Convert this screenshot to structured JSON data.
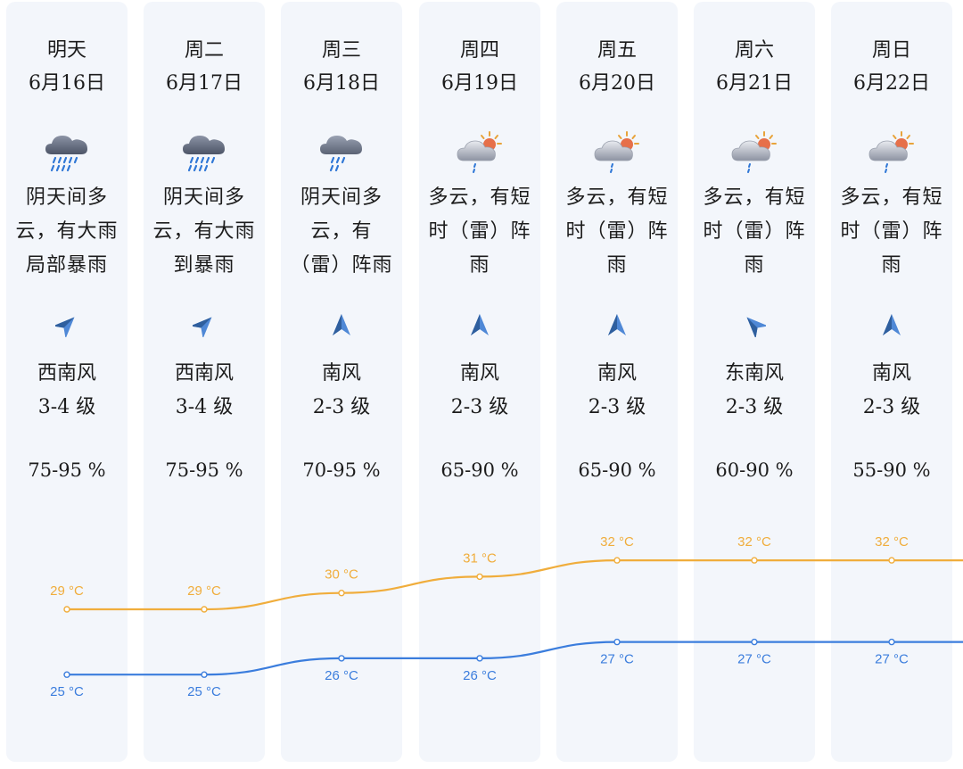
{
  "days": [
    {
      "day": "明天",
      "date": "6月16日",
      "icon": "heavy-rain-icon",
      "desc": "阴天间多云，有大雨局部暴雨",
      "wind_icon": "wind-arrow-southwest-icon",
      "wind_dir": "西南风",
      "wind_level": "3-4 级",
      "humidity": "75-95 %",
      "high": "29 °C",
      "low": "25 °C"
    },
    {
      "day": "周二",
      "date": "6月17日",
      "icon": "heavy-rain-icon",
      "desc": "阴天间多云，有大雨到暴雨",
      "wind_icon": "wind-arrow-southwest-icon",
      "wind_dir": "西南风",
      "wind_level": "3-4 级",
      "humidity": "75-95 %",
      "high": "29 °C",
      "low": "25 °C"
    },
    {
      "day": "周三",
      "date": "6月18日",
      "icon": "thunder-rain-icon",
      "desc": "阴天间多云，有（雷）阵雨",
      "wind_icon": "wind-arrow-south-icon",
      "wind_dir": "南风",
      "wind_level": "2-3 级",
      "humidity": "70-95 %",
      "high": "30 °C",
      "low": "26 °C"
    },
    {
      "day": "周四",
      "date": "6月19日",
      "icon": "partly-cloudy-shower-icon",
      "desc": "多云，有短时（雷）阵雨",
      "wind_icon": "wind-arrow-south-icon",
      "wind_dir": "南风",
      "wind_level": "2-3 级",
      "humidity": "65-90 %",
      "high": "31 °C",
      "low": "26 °C"
    },
    {
      "day": "周五",
      "date": "6月20日",
      "icon": "partly-cloudy-shower-icon",
      "desc": "多云，有短时（雷）阵雨",
      "wind_icon": "wind-arrow-south-icon",
      "wind_dir": "南风",
      "wind_level": "2-3 级",
      "humidity": "65-90 %",
      "high": "32 °C",
      "low": "27 °C"
    },
    {
      "day": "周六",
      "date": "6月21日",
      "icon": "partly-cloudy-shower-icon",
      "desc": "多云，有短时（雷）阵雨",
      "wind_icon": "wind-arrow-southeast-icon",
      "wind_dir": "东南风",
      "wind_level": "2-3 级",
      "humidity": "60-90 %",
      "high": "32 °C",
      "low": "27 °C"
    },
    {
      "day": "周日",
      "date": "6月22日",
      "icon": "partly-cloudy-shower-icon",
      "desc": "多云，有短时（雷）阵雨",
      "wind_icon": "wind-arrow-south-icon",
      "wind_dir": "南风",
      "wind_level": "2-3 级",
      "humidity": "55-90 %",
      "high": "32 °C",
      "low": "27 °C"
    }
  ],
  "chart_data": {
    "type": "line",
    "categories": [
      "明天",
      "周二",
      "周三",
      "周四",
      "周五",
      "周六",
      "周日"
    ],
    "series": [
      {
        "name": "",
        "values": [
          29,
          29,
          30,
          31,
          32,
          32,
          32
        ]
      },
      {
        "name": "",
        "values": [
          25,
          25,
          26,
          26,
          27,
          27,
          27
        ]
      }
    ],
    "colors": {
      "high": "#f0ad3c",
      "low": "#3b7ddd"
    }
  }
}
